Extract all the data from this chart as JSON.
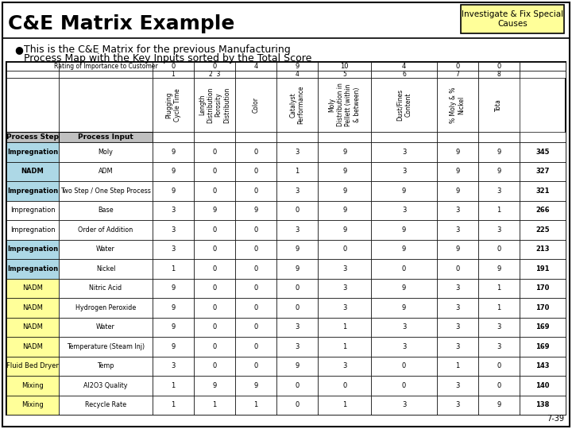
{
  "title": "C&E Matrix Example",
  "badge_text": "Investigate & Fix Special\nCauses",
  "bullet_line1": "This is the C&E Matrix for the previous Manufacturing",
  "bullet_line2": "Process Map with the Key Inputs sorted by the Total Score",
  "rating_label": "Rating of Importance to Customer",
  "ratings": [
    "0",
    "0",
    "4",
    "9",
    "10",
    "4",
    "0",
    "0"
  ],
  "col_num_labels": [
    "1",
    "2  3",
    "4",
    "5",
    "6",
    "7",
    "8"
  ],
  "col_headers": [
    "Plugging\nCycle Time",
    "Length\nDistribution\nPorosity\nDistribution",
    "Color",
    "Catalyst\nPerformance",
    "Moly\nDistribution in\nPellett (within\n& between)",
    "Dust/Fines\nContent",
    "% Moly & %\nNickel",
    "Tota"
  ],
  "rows": [
    {
      "step": "Impregnation",
      "input": "Moly",
      "vals": [
        9,
        0,
        0,
        3,
        9,
        3,
        9,
        9,
        345
      ],
      "color": "blue"
    },
    {
      "step": "NADM",
      "input": "ADM",
      "vals": [
        9,
        0,
        0,
        1,
        9,
        3,
        9,
        9,
        327
      ],
      "color": "blue"
    },
    {
      "step": "Impregnation",
      "input": "Two Step / One Step Process",
      "vals": [
        9,
        0,
        0,
        3,
        9,
        9,
        9,
        3,
        321
      ],
      "color": "blue"
    },
    {
      "step": "Impregnation",
      "input": "Base",
      "vals": [
        3,
        9,
        9,
        0,
        9,
        3,
        3,
        1,
        266
      ],
      "color": "white"
    },
    {
      "step": "Impregnation",
      "input": "Order of Addition",
      "vals": [
        3,
        0,
        0,
        3,
        9,
        9,
        3,
        3,
        225
      ],
      "color": "white"
    },
    {
      "step": "Impregnation",
      "input": "Water",
      "vals": [
        3,
        0,
        0,
        9,
        0,
        9,
        9,
        0,
        213
      ],
      "color": "blue"
    },
    {
      "step": "Impregnation",
      "input": "Nickel",
      "vals": [
        1,
        0,
        0,
        9,
        3,
        0,
        0,
        9,
        191
      ],
      "color": "blue"
    },
    {
      "step": "NADM",
      "input": "Nitric Acid",
      "vals": [
        9,
        0,
        0,
        0,
        3,
        9,
        3,
        1,
        170
      ],
      "color": "yellow"
    },
    {
      "step": "NADM",
      "input": "Hydrogen Peroxide",
      "vals": [
        9,
        0,
        0,
        0,
        3,
        9,
        3,
        1,
        170
      ],
      "color": "yellow"
    },
    {
      "step": "NADM",
      "input": "Water",
      "vals": [
        9,
        0,
        0,
        3,
        1,
        3,
        3,
        3,
        169
      ],
      "color": "yellow"
    },
    {
      "step": "NADM",
      "input": "Temperature (Steam Inj)",
      "vals": [
        9,
        0,
        0,
        3,
        1,
        3,
        3,
        3,
        169
      ],
      "color": "yellow"
    },
    {
      "step": "Fluid Bed Dryer",
      "input": "Temp",
      "vals": [
        3,
        0,
        0,
        9,
        3,
        0,
        1,
        0,
        143
      ],
      "color": "yellow"
    },
    {
      "step": "Mixing",
      "input": "Al2O3 Quality",
      "vals": [
        1,
        9,
        9,
        0,
        0,
        0,
        3,
        0,
        140
      ],
      "color": "yellow"
    },
    {
      "step": "Mixing",
      "input": "Recycle Rate",
      "vals": [
        1,
        1,
        1,
        0,
        1,
        3,
        3,
        9,
        138
      ],
      "color": "yellow"
    }
  ],
  "bg_color": "#ffffff",
  "blue_color": "#add8e6",
  "yellow_color": "#ffff99",
  "gray_color": "#c0c0c0",
  "page_num": "7-39",
  "title_fontsize": 18,
  "bullet_fontsize": 9,
  "table_fontsize": 6,
  "header_fontsize": 6.5,
  "rotated_fontsize": 5.5
}
